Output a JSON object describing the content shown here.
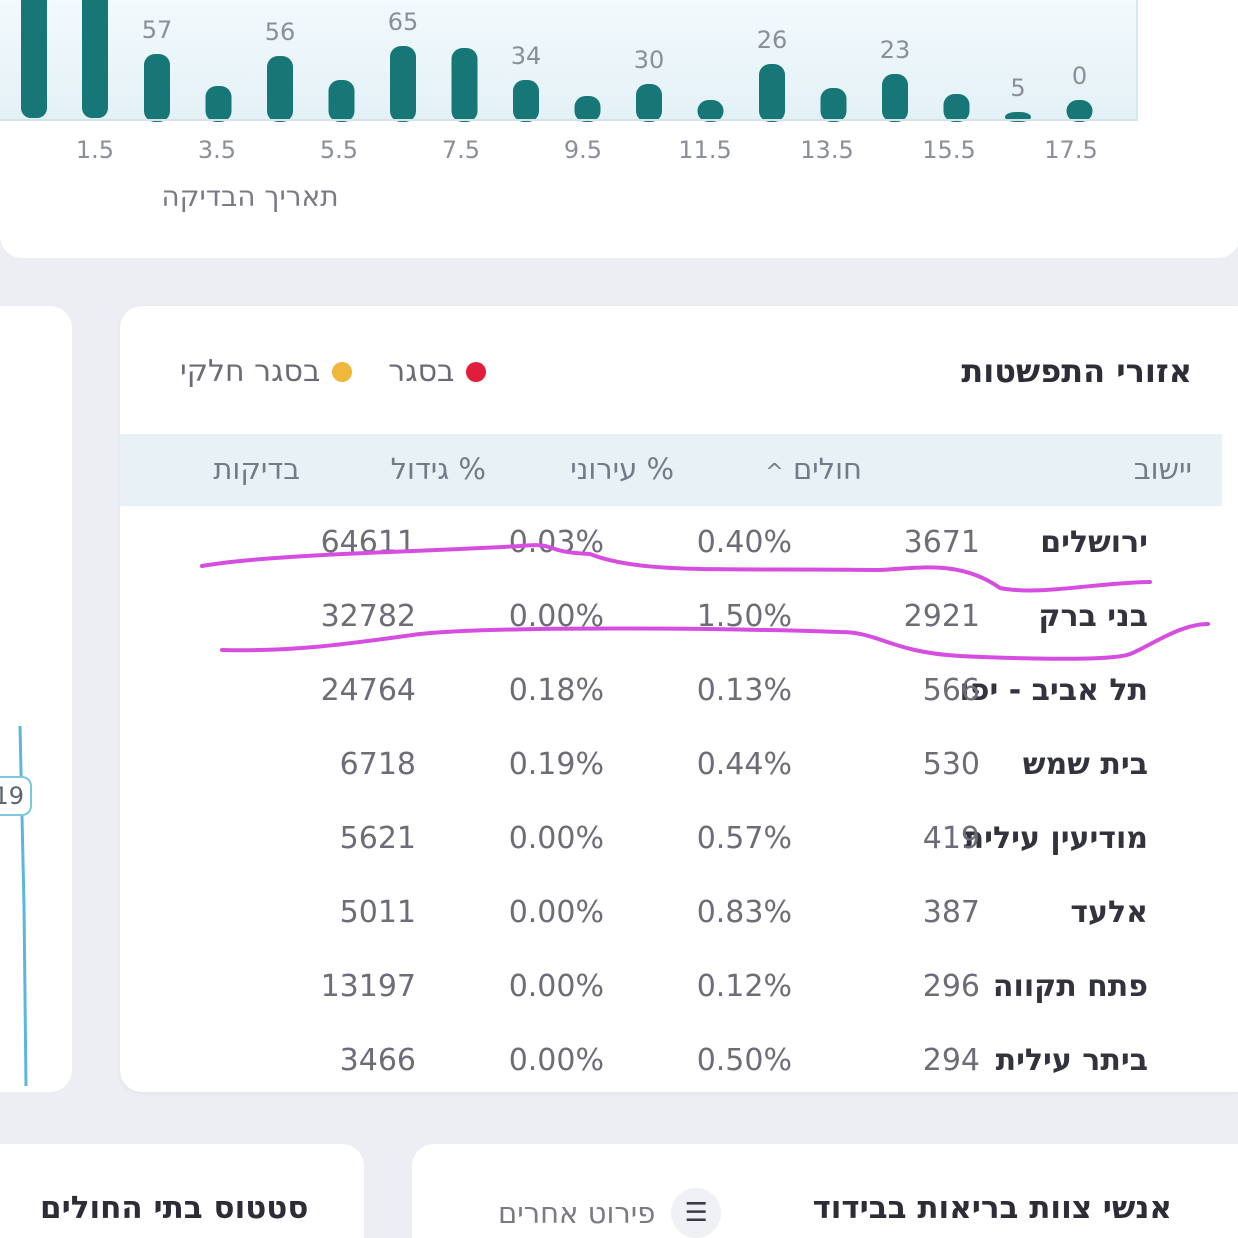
{
  "chart_data": {
    "type": "bar",
    "x_ticks": [
      "1.5",
      "3.5",
      "5.5",
      "7.5",
      "9.5",
      "11.5",
      "13.5",
      "15.5",
      "17.5"
    ],
    "values": [
      null,
      null,
      57,
      null,
      56,
      null,
      65,
      null,
      34,
      null,
      30,
      null,
      26,
      null,
      23,
      null,
      5,
      0
    ],
    "value_labels": [
      "",
      "",
      "57",
      "",
      "56",
      "",
      "65",
      "",
      "34",
      "",
      "30",
      "",
      "26",
      "",
      "23",
      "",
      "5",
      "0"
    ],
    "xlabel": "תאריך הבדיקה",
    "bar_color": "#167776"
  },
  "left_card": {
    "badge_value": "19"
  },
  "table": {
    "title": "אזורי התפשטות",
    "legend": [
      {
        "label": "בסגר",
        "color": "#e01e3c"
      },
      {
        "label": "בסגר חלקי",
        "color": "#f0b73a"
      }
    ],
    "columns": {
      "city": "יישוב",
      "patients": "חולים",
      "sort_indicator": "^",
      "urban": "% עירוני",
      "growth": "% גידול",
      "tests": "בדיקות"
    },
    "rows": [
      {
        "city": "ירושלים",
        "patients": "3671",
        "urban": "0.40%",
        "growth": "0.03%",
        "tests": "64611"
      },
      {
        "city": "בני ברק",
        "patients": "2921",
        "urban": "1.50%",
        "growth": "0.00%",
        "tests": "32782"
      },
      {
        "city": "תל אביב - יפו",
        "patients": "566",
        "urban": "0.13%",
        "growth": "0.18%",
        "tests": "24764"
      },
      {
        "city": "בית שמש",
        "patients": "530",
        "urban": "0.44%",
        "growth": "0.19%",
        "tests": "6718"
      },
      {
        "city": "מודיעין עילית",
        "patients": "419",
        "urban": "0.57%",
        "growth": "0.00%",
        "tests": "5621"
      },
      {
        "city": "אלעד",
        "patients": "387",
        "urban": "0.83%",
        "growth": "0.00%",
        "tests": "5011"
      },
      {
        "city": "פתח תקווה",
        "patients": "296",
        "urban": "0.12%",
        "growth": "0.00%",
        "tests": "13197"
      },
      {
        "city": "ביתר עילית",
        "patients": "294",
        "urban": "0.50%",
        "growth": "0.00%",
        "tests": "3466"
      }
    ],
    "marker_color": "#d64ee0"
  },
  "bottom": {
    "hospital_status_title": "סטטוס בתי החולים",
    "staff_isolation_title": "אנשי צוות בריאות בבידוד",
    "detail_button_label": "פירוט אחרים"
  }
}
